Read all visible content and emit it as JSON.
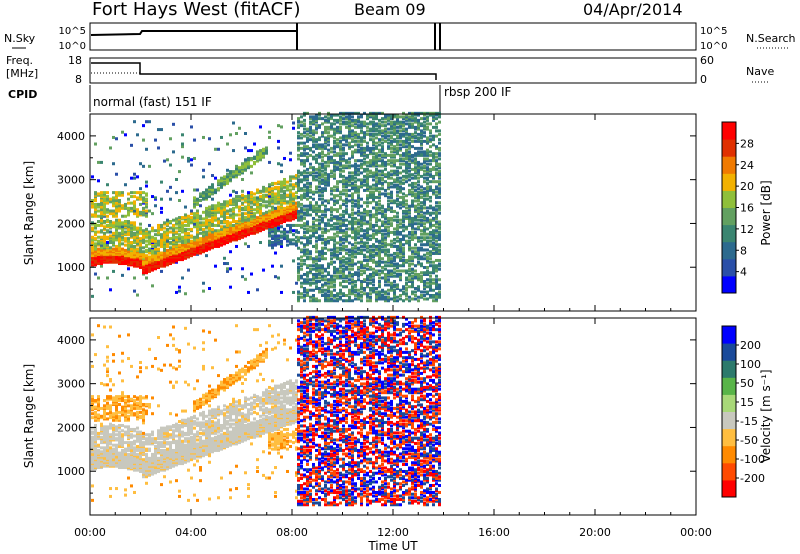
{
  "header": {
    "station": "Fort Hays West (fitACF)",
    "beam": "Beam 09",
    "date": "04/Apr/2014"
  },
  "status_panels": {
    "nsky_label": "N.Sky",
    "nsky_ticks": [
      "10^5",
      "10^0"
    ],
    "nsearch_label": "N.Search",
    "freq_label_1": "Freq.",
    "freq_label_2": "[MHz]",
    "freq_ticks": [
      "18",
      "8"
    ],
    "nave_label": "Nave",
    "nave_ticks": [
      "60",
      "0"
    ],
    "cpid_label": "CPID",
    "cpid_segments": [
      {
        "label": "normal (fast) 151 IF",
        "start_hour": 0,
        "end_hour": 14.0
      },
      {
        "label": "rbsp 200 IF",
        "start_hour": 14.0,
        "end_hour": 24
      }
    ]
  },
  "chart_data": [
    {
      "type": "heatmap",
      "name": "power",
      "ylabel": "Slant Range [km]",
      "xlabel": "Time UT",
      "ylim": [
        0,
        4500
      ],
      "xlim_hours": [
        0,
        24
      ],
      "yticks": [
        1000,
        2000,
        3000,
        4000
      ],
      "xtick_labels": [
        "00:00",
        "04:00",
        "08:00",
        "12:00",
        "16:00",
        "20:00",
        "00:00"
      ],
      "colorbar": {
        "label": "Power [dB]",
        "range": [
          0,
          32
        ],
        "ticks": [
          "28",
          "24",
          "20",
          "16",
          "12",
          "8",
          "4"
        ],
        "colors": [
          "#0000ff",
          "#2a4fa8",
          "#2c6a8e",
          "#3a8570",
          "#62a060",
          "#8fbf3a",
          "#f2b100",
          "#f07a00",
          "#e03000",
          "#ff0000"
        ]
      }
    },
    {
      "type": "heatmap",
      "name": "velocity",
      "ylabel": "Slant Range [km]",
      "xlabel": "Time UT",
      "ylim": [
        0,
        4500
      ],
      "xlim_hours": [
        0,
        24
      ],
      "yticks": [
        1000,
        2000,
        3000,
        4000
      ],
      "xtick_labels": [
        "00:00",
        "04:00",
        "08:00",
        "12:00",
        "16:00",
        "20:00",
        "00:00"
      ],
      "colorbar": {
        "label": "Velocity [m s⁻¹]",
        "ticks": [
          "200",
          "100",
          "50",
          "15",
          "-15",
          "-50",
          "-100",
          "-200"
        ],
        "colors": [
          "#ff0000",
          "#ff4a00",
          "#ff8a00",
          "#ffbe40",
          "#c8c8be",
          "#a8d878",
          "#58b448",
          "#2c7a6c",
          "#1a4a9a",
          "#0000ff"
        ]
      }
    }
  ]
}
